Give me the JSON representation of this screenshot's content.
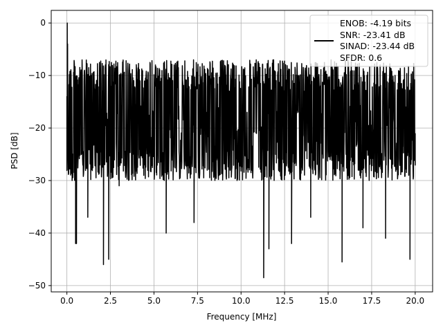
{
  "chart_data": {
    "type": "line",
    "title": "",
    "xlabel": "Frequency [MHz]",
    "ylabel": "PSD [dB]",
    "xlim": [
      -0.9,
      21.0
    ],
    "ylim": [
      -51.2,
      2.4
    ],
    "xticks": [
      0.0,
      2.5,
      5.0,
      7.5,
      10.0,
      12.5,
      15.0,
      17.5,
      20.0
    ],
    "xtick_labels": [
      "0.0",
      "2.5",
      "5.0",
      "7.5",
      "10.0",
      "12.5",
      "15.0",
      "17.5",
      "20.0"
    ],
    "yticks": [
      0,
      -10,
      -20,
      -30,
      -40,
      -50
    ],
    "ytick_labels": [
      "0",
      "−10",
      "−20",
      "−30",
      "−40",
      "−50"
    ],
    "grid": true,
    "legend_position": "top-right",
    "legend_lines": [
      "ENOB: -4.19 bits",
      "SNR: -23.41 dB",
      "SINAD: -23.44 dB",
      "SFDR: 0.6"
    ],
    "line_color": "#000000",
    "series": [
      {
        "x": [
          0.0,
          0.02,
          0.04,
          0.08,
          0.12,
          0.2,
          0.3,
          0.5,
          0.55,
          0.7,
          1.2,
          2.1,
          2.4,
          3.0,
          5.7,
          7.3,
          11.3,
          11.6,
          12.9,
          14.0,
          15.8,
          17.0,
          18.3,
          19.7,
          20.0
        ],
        "values": [
          -14,
          0.0,
          -4,
          -26,
          -12,
          -18,
          -30,
          -42,
          -42,
          -25,
          -37,
          -46,
          -45,
          -31,
          -40,
          -38,
          -48.5,
          -43,
          -42,
          -37,
          -45.5,
          -39,
          -41,
          -45,
          -21
        ],
        "noise_floor_db": -19.5,
        "typical_range_db": [
          -30,
          -7
        ]
      }
    ]
  }
}
